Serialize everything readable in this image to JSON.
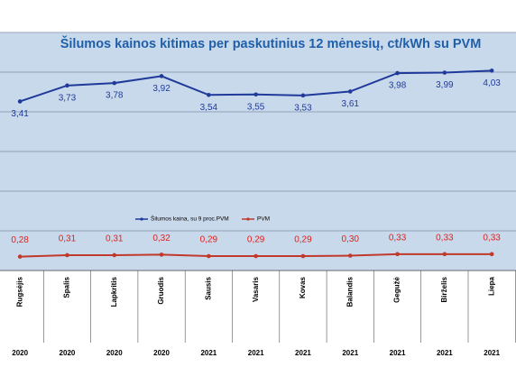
{
  "chart_data": {
    "type": "line",
    "title": "Šilumos kainos kitimas per paskutinius 12 mėnesių, ct/kWh su PVM",
    "categories": [
      "Rugsėjis",
      "Spalis",
      "Lapkritis",
      "Gruodis",
      "Sausis",
      "Vasaris",
      "Kovas",
      "Balandis",
      "Gegužė",
      "Birželis",
      "Liepa"
    ],
    "years": [
      "2020",
      "2020",
      "2020",
      "2020",
      "2021",
      "2021",
      "2021",
      "2021",
      "2021",
      "2021",
      "2021"
    ],
    "series": [
      {
        "name": "Šilumos kaina, su 9 proc.PVM",
        "color": "#1f3a9a",
        "values": [
          3.41,
          3.73,
          3.78,
          3.92,
          3.54,
          3.55,
          3.53,
          3.61,
          3.98,
          3.99,
          4.03
        ],
        "value_labels": [
          "3,41",
          "3,73",
          "3,78",
          "3,92",
          "3,54",
          "3,55",
          "3,53",
          "3,61",
          "3,98",
          "3,99",
          "4,03"
        ]
      },
      {
        "name": "PVM",
        "color": "#c0392b",
        "values": [
          0.28,
          0.31,
          0.31,
          0.32,
          0.29,
          0.29,
          0.29,
          0.3,
          0.33,
          0.33,
          0.33
        ],
        "value_labels": [
          "0,28",
          "0,31",
          "0,31",
          "0,32",
          "0,29",
          "0,29",
          "0,29",
          "0,30",
          "0,33",
          "0,33",
          "0,33"
        ]
      }
    ],
    "ylim": [
      0,
      4.8
    ],
    "gridlines": [
      0,
      0.8,
      1.6,
      2.4,
      3.2,
      4.0,
      4.8
    ],
    "legend": "center"
  }
}
